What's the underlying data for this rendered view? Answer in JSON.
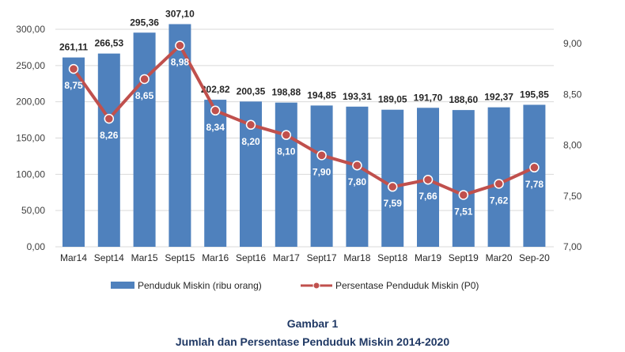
{
  "chart_data": {
    "type": "bar+line",
    "categories": [
      "Mar14",
      "Sept14",
      "Mar15",
      "Sept15",
      "Mar16",
      "Sept16",
      "Mar17",
      "Sept17",
      "Mar18",
      "Sept18",
      "Mar19",
      "Sept19",
      "Mar20",
      "Sep-20"
    ],
    "series": [
      {
        "name": "Penduduk Miskin (ribu orang)",
        "type": "bar",
        "axis": "left",
        "color": "#4f81bd",
        "values": [
          261.11,
          266.53,
          295.36,
          307.1,
          202.82,
          200.35,
          198.88,
          194.85,
          193.31,
          189.05,
          191.7,
          188.6,
          192.37,
          195.85
        ],
        "labels": [
          "261,11",
          "266,53",
          "295,36",
          "307,10",
          "202,82",
          "200,35",
          "198,88",
          "194,85",
          "193,31",
          "189,05",
          "191,70",
          "188,60",
          "192,37",
          "195,85"
        ]
      },
      {
        "name": "Persentase Penduduk Miskin (P0)",
        "type": "line",
        "axis": "right",
        "color": "#c0504d",
        "values": [
          8.75,
          8.26,
          8.65,
          8.98,
          8.34,
          8.2,
          8.1,
          7.9,
          7.8,
          7.59,
          7.66,
          7.51,
          7.62,
          7.78
        ],
        "labels": [
          "8,75",
          "8,26",
          "8,65",
          "8,98",
          "8,34",
          "8,20",
          "8,10",
          "7,90",
          "7,80",
          "7,59",
          "7,66",
          "7,51",
          "7,62",
          "7,78"
        ]
      }
    ],
    "left_axis": {
      "ylim": [
        0,
        300
      ],
      "ticks": [
        "0,00",
        "50,00",
        "100,00",
        "150,00",
        "200,00",
        "250,00",
        "300,00"
      ]
    },
    "right_axis": {
      "ylim": [
        7,
        9
      ],
      "ticks": [
        "7,00",
        "7,50",
        "8,00",
        "8,50",
        "9,00"
      ]
    },
    "grid": true,
    "legend": "bottom"
  },
  "caption": {
    "line1": "Gambar 1",
    "line2": "Jumlah dan Persentase Penduduk Miskin 2014-2020"
  }
}
